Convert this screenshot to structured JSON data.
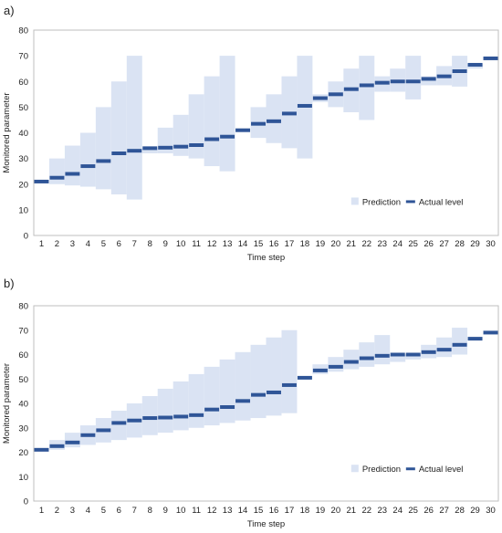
{
  "chart_data": [
    {
      "panel_label": "a)",
      "type": "bar",
      "xlabel": "Time step",
      "ylabel": "Monitored parameter",
      "ylim": [
        0,
        80
      ],
      "yticks": [
        0,
        10,
        20,
        30,
        40,
        50,
        60,
        70,
        80
      ],
      "categories": [
        "1",
        "2",
        "3",
        "4",
        "5",
        "6",
        "7",
        "8",
        "9",
        "10",
        "11",
        "12",
        "13",
        "14",
        "15",
        "16",
        "17",
        "18",
        "19",
        "20",
        "21",
        "22",
        "23",
        "24",
        "25",
        "26",
        "27",
        "28",
        "29",
        "30"
      ],
      "legend": {
        "position": "bottom-right",
        "prediction_label": "Prediction",
        "actual_label": "Actual level"
      },
      "colors": {
        "prediction": "#dae3f3",
        "actual": "#2f5597"
      },
      "series": [
        {
          "name": "Actual level",
          "values": [
            21,
            22.5,
            24,
            27,
            29,
            32,
            33,
            34,
            34.2,
            34.6,
            35.2,
            37.5,
            38.5,
            41,
            43.5,
            44.5,
            47.5,
            50.5,
            53.5,
            55,
            57,
            58.5,
            59.5,
            60,
            60,
            61,
            62,
            64,
            66.5,
            69
          ]
        },
        {
          "name": "Prediction",
          "low": [
            null,
            20,
            19.5,
            19,
            18,
            16,
            14,
            32,
            32,
            31,
            30,
            27,
            25,
            null,
            38,
            36,
            34,
            30,
            52,
            50,
            48,
            45,
            56,
            56,
            53,
            58.5,
            58.5,
            58,
            65,
            null
          ],
          "high": [
            null,
            30,
            35,
            40,
            50,
            60,
            70,
            34,
            42,
            47,
            55,
            62,
            70,
            null,
            50,
            55,
            62,
            70,
            55,
            60,
            65,
            70,
            62,
            65,
            70,
            62,
            66,
            70,
            67,
            null
          ]
        }
      ]
    },
    {
      "panel_label": "b)",
      "type": "bar",
      "xlabel": "Time step",
      "ylabel": "Monitored parameter",
      "ylim": [
        0,
        80
      ],
      "yticks": [
        0,
        10,
        20,
        30,
        40,
        50,
        60,
        70,
        80
      ],
      "categories": [
        "1",
        "2",
        "3",
        "4",
        "5",
        "6",
        "7",
        "8",
        "9",
        "10",
        "11",
        "12",
        "13",
        "14",
        "15",
        "16",
        "17",
        "18",
        "19",
        "20",
        "21",
        "22",
        "23",
        "24",
        "25",
        "26",
        "27",
        "28",
        "29",
        "30"
      ],
      "legend": {
        "position": "bottom-right",
        "prediction_label": "Prediction",
        "actual_label": "Actual level"
      },
      "colors": {
        "prediction": "#dae3f3",
        "actual": "#2f5597"
      },
      "series": [
        {
          "name": "Actual level",
          "values": [
            21,
            22.5,
            24,
            27,
            29,
            32,
            33,
            34,
            34.2,
            34.6,
            35.2,
            37.5,
            38.5,
            41,
            43.5,
            44.5,
            47.5,
            50.5,
            53.5,
            55,
            57,
            58.5,
            59.5,
            60,
            60,
            61,
            62,
            64,
            66.5,
            69
          ]
        },
        {
          "name": "Prediction",
          "low": [
            null,
            21,
            22,
            23,
            24,
            25,
            26,
            27,
            28,
            29,
            30,
            31,
            32,
            33,
            34,
            35,
            36,
            null,
            52,
            53,
            54,
            55,
            56,
            57,
            58,
            58.5,
            59,
            60,
            null,
            null
          ],
          "high": [
            null,
            25,
            28,
            31,
            34,
            37,
            40,
            43,
            46,
            49,
            52,
            55,
            58,
            61,
            64,
            67,
            70,
            null,
            56,
            59,
            62,
            65,
            68,
            60,
            60,
            64,
            67,
            71,
            null,
            null
          ]
        }
      ]
    }
  ]
}
